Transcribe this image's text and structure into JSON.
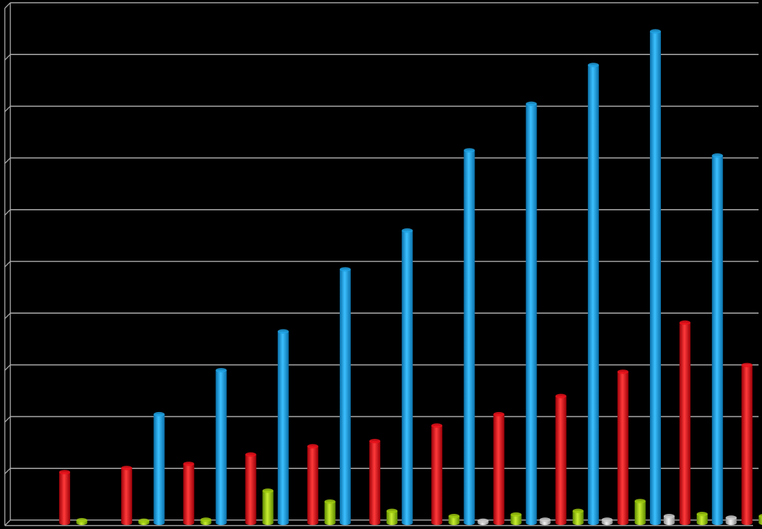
{
  "chart_data": {
    "type": "bar",
    "title": "",
    "xlabel": "",
    "ylabel": "",
    "ylim": [
      0,
      10
    ],
    "grid": true,
    "legend": "none",
    "categories": [
      "",
      "",
      "",
      "",
      "",
      "",
      "",
      "",
      "",
      "",
      "",
      ""
    ],
    "series": [
      {
        "color": "#1EA0E0",
        "values": [
          0,
          0,
          2.1,
          2.95,
          3.7,
          4.9,
          5.65,
          7.2,
          8.1,
          8.85,
          9.5,
          7.1
        ]
      },
      {
        "color": "#E8101A",
        "values": [
          0.98,
          1.06,
          1.14,
          1.32,
          1.48,
          1.58,
          1.88,
          2.1,
          2.45,
          2.92,
          3.87,
          3.05
        ]
      },
      {
        "color": "#C8C8C8",
        "values": [
          0,
          0,
          0,
          0,
          0,
          0,
          0,
          0.04,
          0.06,
          0.06,
          0.13,
          0.1
        ]
      },
      {
        "color": "#9CC80E",
        "values": [
          0.05,
          0.04,
          0.06,
          0.62,
          0.41,
          0.23,
          0.13,
          0.16,
          0.23,
          0.42,
          0.17,
          0.13
        ]
      }
    ]
  }
}
